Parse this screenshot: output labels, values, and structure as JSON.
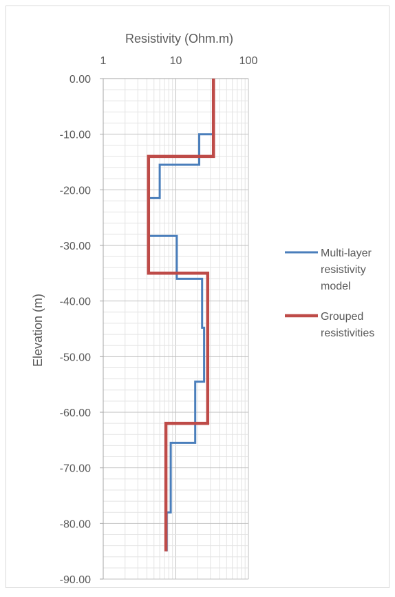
{
  "chart_data": {
    "type": "line",
    "title": "",
    "xlabel": "Resistivity (Ohm.m)",
    "ylabel": "Elevation (m)",
    "x_scale": "log",
    "xlim": [
      1,
      100
    ],
    "ylim": [
      -90,
      0
    ],
    "x_ticks": [
      "1",
      "10",
      "100"
    ],
    "y_ticks": [
      "0.00",
      "-10.00",
      "-20.00",
      "-30.00",
      "-40.00",
      "-50.00",
      "-60.00",
      "-70.00",
      "-80.00",
      "-90.00"
    ],
    "grid": true,
    "x_axis_position": "top",
    "legend_position": "right",
    "series": [
      {
        "name": "Multi-layer resistivity model",
        "color": "#4a7ebb",
        "points": [
          [
            33,
            0
          ],
          [
            33,
            -10
          ],
          [
            21,
            -10
          ],
          [
            21,
            -15.5
          ],
          [
            6,
            -15.5
          ],
          [
            6,
            -21.5
          ],
          [
            4.2,
            -21.5
          ],
          [
            4.2,
            -28.3
          ],
          [
            10.3,
            -28.3
          ],
          [
            10.3,
            -36
          ],
          [
            23,
            -36
          ],
          [
            23,
            -44.8
          ],
          [
            24.5,
            -44.8
          ],
          [
            24.5,
            -54.5
          ],
          [
            18.5,
            -54.5
          ],
          [
            18.5,
            -65.5
          ],
          [
            8.5,
            -65.5
          ],
          [
            8.5,
            -78
          ],
          [
            7.5,
            -78
          ],
          [
            7.5,
            -85
          ]
        ]
      },
      {
        "name": "Grouped resistivities",
        "color": "#be4b48",
        "points": [
          [
            33,
            0
          ],
          [
            33,
            -14
          ],
          [
            4.2,
            -14
          ],
          [
            4.2,
            -35
          ],
          [
            27.5,
            -35
          ],
          [
            27.5,
            -62
          ],
          [
            7.3,
            -62
          ],
          [
            7.3,
            -85
          ]
        ]
      }
    ]
  }
}
